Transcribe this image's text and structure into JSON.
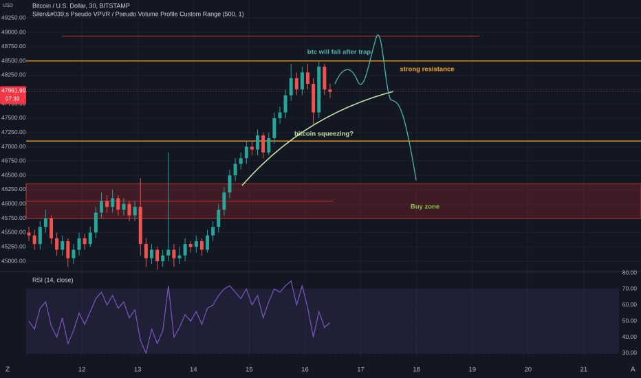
{
  "header": {
    "title": "Bitcoin / U.S. Dollar, 30, BITSTAMP",
    "indicator": "Silen&#039;s Pseudo VPVR / Pseudo Volume Profile Custom Range (500, 1)",
    "currency": "USD"
  },
  "chart_data": [
    {
      "type": "candlestick",
      "x": [
        11.05,
        11.15,
        11.25,
        11.35,
        11.45,
        11.55,
        11.65,
        11.75,
        11.85,
        11.95,
        12.05,
        12.15,
        12.25,
        12.35,
        12.45,
        12.55,
        12.65,
        12.75,
        12.85,
        12.95,
        13.05,
        13.15,
        13.25,
        13.35,
        13.45,
        13.55,
        13.65,
        13.75,
        13.85,
        13.95,
        14.05,
        14.15,
        14.25,
        14.35,
        14.45,
        14.55,
        14.65,
        14.75,
        14.85,
        14.95,
        15.05,
        15.15,
        15.25,
        15.35,
        15.45,
        15.55,
        15.65,
        15.75,
        15.85,
        15.95,
        16.05,
        16.15,
        16.25,
        16.35,
        16.45
      ],
      "open": [
        45500,
        45450,
        45300,
        45600,
        45750,
        45400,
        45200,
        45350,
        45050,
        45200,
        45400,
        45300,
        45500,
        45850,
        46050,
        45950,
        46100,
        45900,
        46000,
        45800,
        45950,
        45300,
        45050,
        45200,
        45000,
        45100,
        45200,
        45050,
        45100,
        45300,
        45250,
        45350,
        45200,
        45450,
        45600,
        45900,
        46200,
        46500,
        46700,
        46800,
        47000,
        46950,
        47200,
        46900,
        47150,
        47500,
        47600,
        47900,
        48200,
        48000,
        48300,
        48100,
        47600,
        48400,
        48000
      ],
      "high": [
        45600,
        45550,
        45700,
        45900,
        45800,
        45500,
        45450,
        45400,
        45300,
        45500,
        45480,
        45600,
        45950,
        46200,
        46150,
        46250,
        46150,
        46100,
        46050,
        46050,
        46450,
        45400,
        45300,
        45250,
        45200,
        46900,
        45300,
        45250,
        45400,
        45350,
        45450,
        45400,
        45550,
        45700,
        46000,
        46300,
        46600,
        46800,
        46900,
        47100,
        47100,
        47300,
        47250,
        47250,
        47600,
        47700,
        48000,
        48450,
        48300,
        48400,
        48450,
        48200,
        48500,
        48450,
        48100
      ],
      "low": [
        45350,
        45200,
        45200,
        45500,
        45300,
        45100,
        45100,
        44900,
        44950,
        45100,
        45200,
        45250,
        45400,
        45750,
        45850,
        45850,
        45800,
        45800,
        45700,
        45700,
        45100,
        44900,
        44950,
        44850,
        44900,
        45000,
        44900,
        44950,
        45000,
        45150,
        45150,
        45100,
        45150,
        45350,
        45500,
        45800,
        46100,
        46400,
        46600,
        46700,
        46850,
        46850,
        46800,
        46850,
        47050,
        47400,
        47500,
        47800,
        47900,
        47900,
        48000,
        47400,
        47500,
        47900,
        47850
      ],
      "close": [
        45450,
        45300,
        45600,
        45750,
        45400,
        45200,
        45350,
        45050,
        45200,
        45400,
        45300,
        45500,
        45850,
        46050,
        45950,
        46100,
        45900,
        46000,
        45800,
        45950,
        45300,
        45050,
        45200,
        45000,
        45100,
        45200,
        45050,
        45100,
        45300,
        45250,
        45350,
        45200,
        45450,
        45600,
        45900,
        46200,
        46500,
        46700,
        46800,
        47000,
        46950,
        47200,
        46900,
        47150,
        47500,
        47600,
        47900,
        48200,
        48000,
        48300,
        48100,
        47600,
        48400,
        48000,
        47960
      ],
      "xlim": [
        11,
        22
      ],
      "ylim": [
        44820,
        49565
      ],
      "yticks": [
        {
          "value": 45000,
          "label": "45000.00"
        },
        {
          "value": 45250,
          "label": "45250.00"
        },
        {
          "value": 45500,
          "label": "45500.00"
        },
        {
          "value": 45750,
          "label": "45750.00"
        },
        {
          "value": 46000,
          "label": "46000.00"
        },
        {
          "value": 46250,
          "label": "46250.00"
        },
        {
          "value": 46500,
          "label": "46500.00"
        },
        {
          "value": 46750,
          "label": "46750.00"
        },
        {
          "value": 47000,
          "label": "47000.00"
        },
        {
          "value": 47250,
          "label": "47250.00"
        },
        {
          "value": 47500,
          "label": "47500.00"
        },
        {
          "value": 47750,
          "label": "47750.00"
        },
        {
          "value": 48000,
          "label": "48000.00"
        },
        {
          "value": 48250,
          "label": "48250.00"
        },
        {
          "value": 48500,
          "label": "48500.00"
        },
        {
          "value": 48750,
          "label": "48750.00"
        },
        {
          "value": 49000,
          "label": "49000.00"
        },
        {
          "value": 49250,
          "label": "49250.00"
        }
      ],
      "up_color": "#26a69a",
      "down_color": "#ef5350",
      "last_price": 47961.99,
      "countdown": "07:39",
      "levels": [
        48935,
        48500,
        47100,
        46050
      ],
      "level_colors": [
        "#c0392b",
        "#f5a623",
        "#f5a623",
        "#c0392b"
      ],
      "zone": [
        45750,
        46350
      ],
      "annotations": [
        "btc will fall after trap",
        "strong resistance",
        "bitcoin squeezing?",
        "Buy zone"
      ]
    },
    {
      "type": "line",
      "title": "RSI (14, close)",
      "x": [
        11.05,
        11.15,
        11.25,
        11.35,
        11.45,
        11.55,
        11.65,
        11.75,
        11.85,
        11.95,
        12.05,
        12.15,
        12.25,
        12.35,
        12.45,
        12.55,
        12.65,
        12.75,
        12.85,
        12.95,
        13.05,
        13.15,
        13.25,
        13.35,
        13.45,
        13.55,
        13.65,
        13.75,
        13.85,
        13.95,
        14.05,
        14.15,
        14.25,
        14.35,
        14.45,
        14.55,
        14.65,
        14.75,
        14.85,
        14.95,
        15.05,
        15.15,
        15.25,
        15.35,
        15.45,
        15.55,
        15.65,
        15.75,
        15.85,
        15.95,
        16.05,
        16.15,
        16.25,
        16.35,
        16.45
      ],
      "values": [
        50,
        45,
        58,
        62,
        47,
        40,
        52,
        36,
        44,
        55,
        48,
        56,
        64,
        68,
        60,
        66,
        58,
        62,
        52,
        57,
        38,
        30,
        45,
        36,
        44,
        72,
        40,
        46,
        54,
        50,
        56,
        48,
        58,
        60,
        66,
        70,
        72,
        68,
        64,
        70,
        60,
        66,
        52,
        62,
        70,
        68,
        72,
        75,
        60,
        72,
        58,
        40,
        56,
        46,
        49
      ],
      "color": "#7e57c2",
      "band": [
        30,
        70
      ],
      "xlim": [
        11,
        22
      ],
      "xticks": [
        12,
        13,
        14,
        15,
        16,
        17,
        18,
        19,
        20,
        21
      ],
      "ylim": [
        27.4,
        80.9
      ],
      "yticks": [
        {
          "value": 30,
          "label": "30.00"
        },
        {
          "value": 40,
          "label": "40.00"
        },
        {
          "value": 50,
          "label": "50.00"
        },
        {
          "value": 60,
          "label": "60.00"
        },
        {
          "value": 70,
          "label": "70.00"
        },
        {
          "value": 80,
          "label": "80.00"
        }
      ]
    }
  ]
}
